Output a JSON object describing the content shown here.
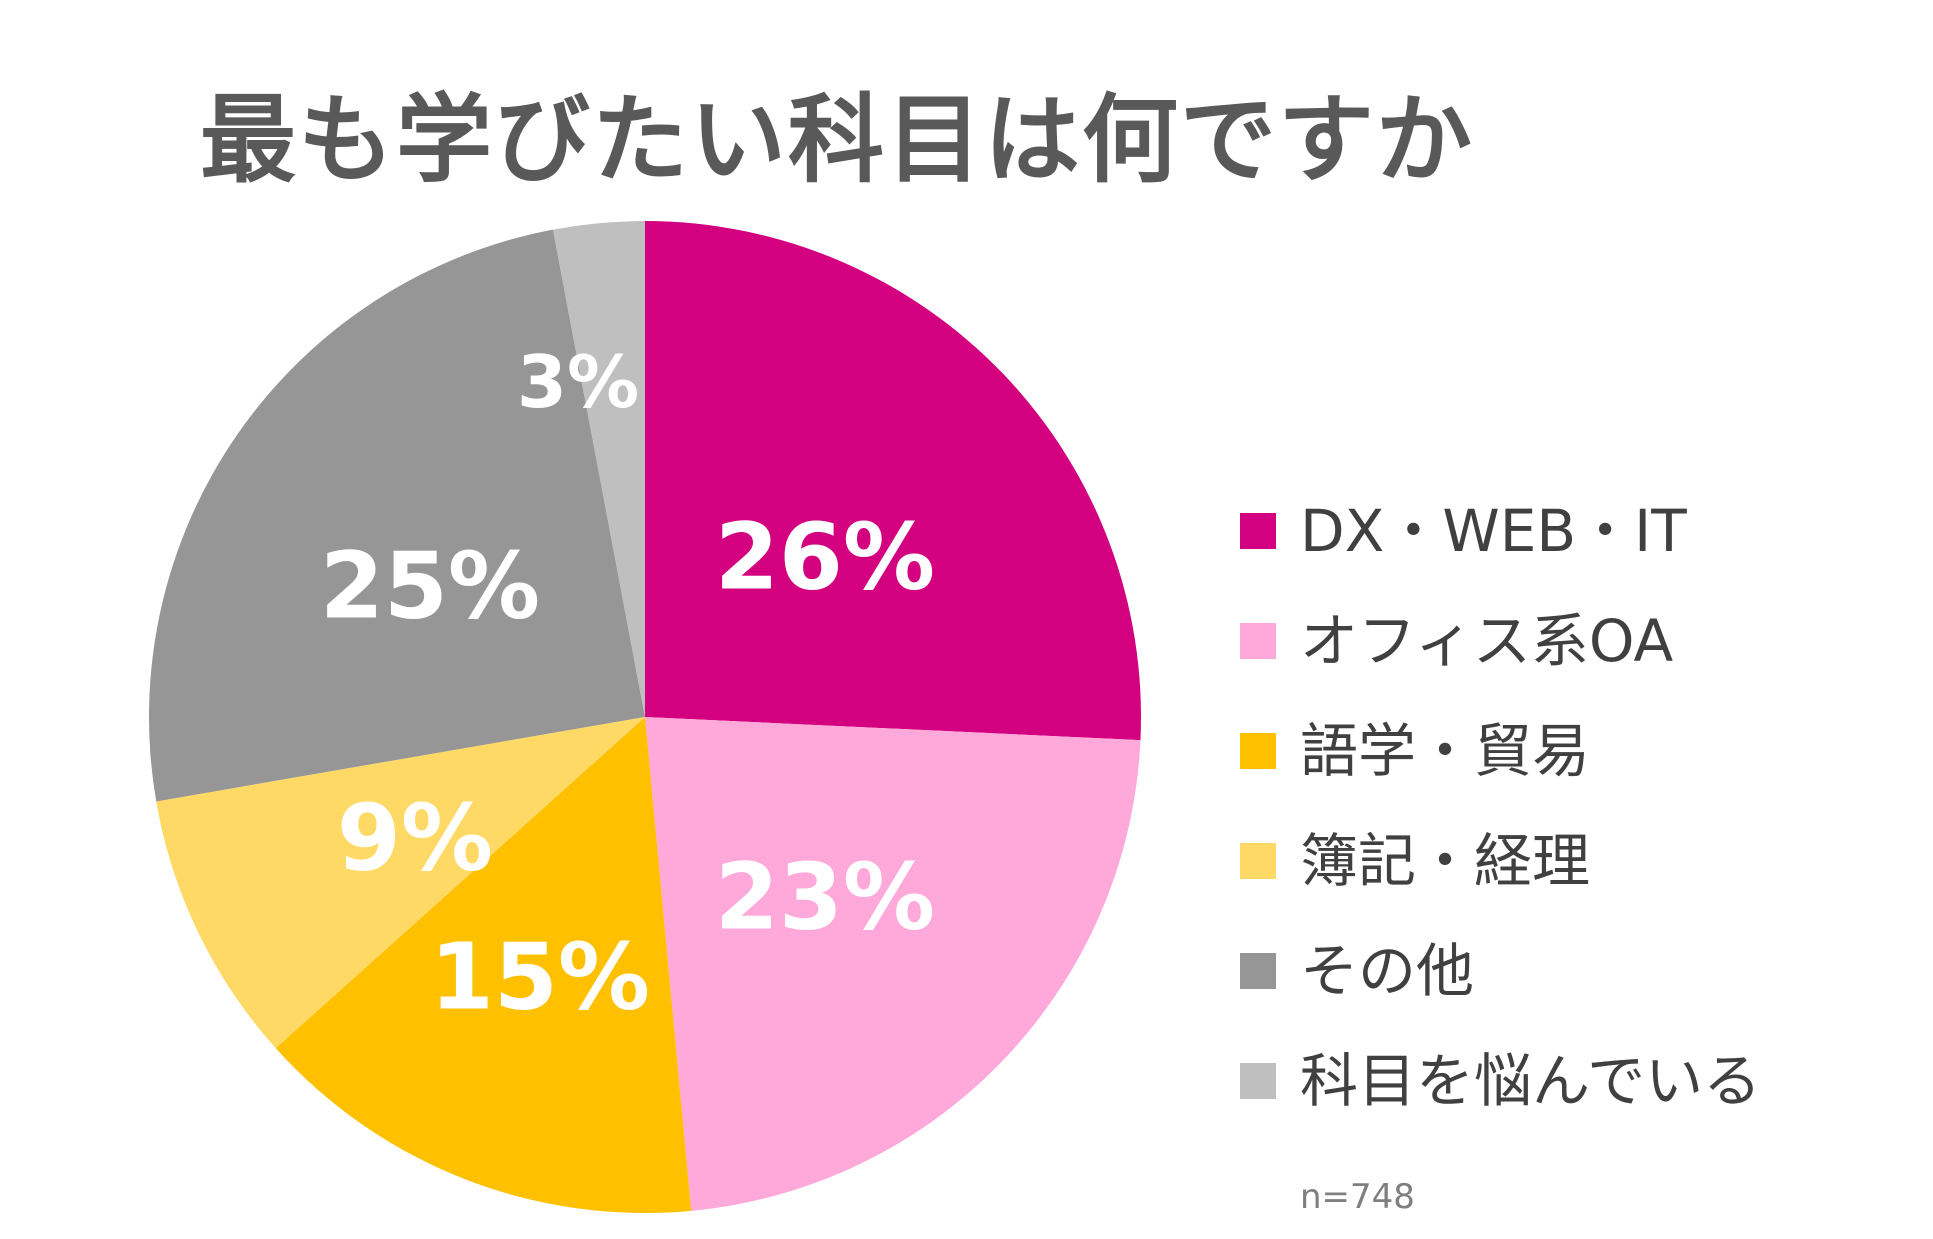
{
  "chart_data": {
    "type": "pie",
    "title": "最も学びたい科目は何ですか",
    "note": "n=748",
    "slices": [
      {
        "label": "DX・WEB・IT",
        "value": 26,
        "display": "26%",
        "color": "#D3007F"
      },
      {
        "label": "オフィス系OA",
        "value": 23,
        "display": "23%",
        "color": "#FFA8DA"
      },
      {
        "label": "語学・貿易",
        "value": 15,
        "display": "15%",
        "color": "#FFC000"
      },
      {
        "label": "簿記・経理",
        "value": 9,
        "display": "9%",
        "color": "#FFD966"
      },
      {
        "label": "その他",
        "value": 25,
        "display": "25%",
        "color": "#969696"
      },
      {
        "label": "科目を悩んでいる",
        "value": 3,
        "display": "3%",
        "color": "#BFBFBF"
      }
    ],
    "legend_position": "right"
  }
}
